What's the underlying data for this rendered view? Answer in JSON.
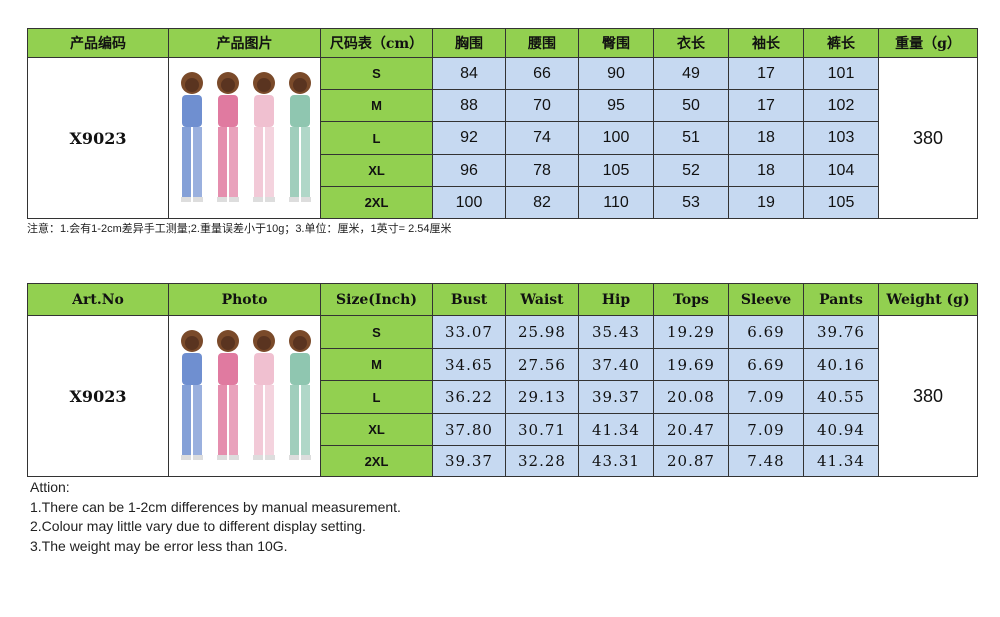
{
  "tables": [
    {
      "header": [
        "产品编码",
        "产品图片",
        "尺码表（cm）",
        "胸围",
        "腰围",
        "臀围",
        "衣长",
        "袖长",
        "裤长",
        "重量（g）"
      ],
      "code": "X9023",
      "weight": "380",
      "rows": [
        [
          "S",
          "84",
          "66",
          "90",
          "49",
          "17",
          "101"
        ],
        [
          "M",
          "88",
          "70",
          "95",
          "50",
          "17",
          "102"
        ],
        [
          "L",
          "92",
          "74",
          "100",
          "51",
          "18",
          "103"
        ],
        [
          "XL",
          "96",
          "78",
          "105",
          "52",
          "18",
          "104"
        ],
        [
          "2XL",
          "100",
          "82",
          "110",
          "53",
          "19",
          "105"
        ]
      ]
    },
    {
      "header": [
        "Art.No",
        "Photo",
        "Size(Inch)",
        "Bust",
        "Waist",
        "Hip",
        "Tops",
        "Sleeve",
        "Pants",
        "Weight (g)"
      ],
      "code": "X9023",
      "weight": "380",
      "rows": [
        [
          "S",
          "33.07",
          "25.98",
          "35.43",
          "19.29",
          "6.69",
          "39.76"
        ],
        [
          "M",
          "34.65",
          "27.56",
          "37.40",
          "19.69",
          "6.69",
          "40.16"
        ],
        [
          "L",
          "36.22",
          "29.13",
          "39.37",
          "20.08",
          "7.09",
          "40.55"
        ],
        [
          "XL",
          "37.80",
          "30.71",
          "41.34",
          "20.47",
          "7.09",
          "40.94"
        ],
        [
          "2XL",
          "39.37",
          "32.28",
          "43.31",
          "20.87",
          "7.48",
          "41.34"
        ]
      ]
    }
  ],
  "note": "注意：1.会有1-2cm差异手工测量;2.重量误差小于10g；3.单位：厘米，1英寸= 2.54厘米",
  "attention": [
    "Attion:",
    "1.There can be 1-2cm differences by manual measurement.",
    "2.Colour may little vary due to different display setting.",
    "3.The weight may be error less than 10G."
  ]
}
